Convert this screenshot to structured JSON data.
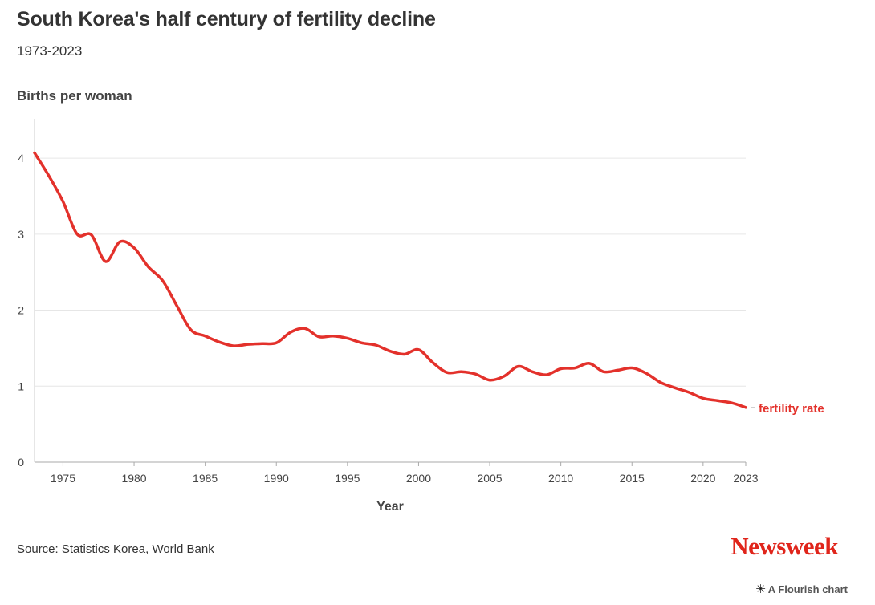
{
  "header": {
    "title": "South Korea's half century of fertility decline",
    "subtitle": "1973-2023"
  },
  "footer": {
    "source_prefix": "Source: ",
    "source_link_1": "Statistics Korea",
    "source_sep": ", ",
    "source_link_2": "World Bank",
    "brand": "Newsweek",
    "flourish_icon": "asterisk-icon",
    "flourish_label": "A Flourish chart"
  },
  "colors": {
    "line": "#e3312b",
    "grid": "#e6e6e6",
    "axis": "#cccccc",
    "text": "#333333"
  },
  "chart_data": {
    "type": "line",
    "title": "South Korea's half century of fertility decline",
    "subtitle": "1973-2023",
    "xlabel": "Year",
    "ylabel": "Births per woman",
    "xlim": [
      1973,
      2023
    ],
    "ylim": [
      0,
      4.5
    ],
    "x_ticks": [
      1975,
      1980,
      1985,
      1990,
      1995,
      2000,
      2005,
      2010,
      2015,
      2020,
      2023
    ],
    "y_ticks": [
      0,
      1,
      2,
      3,
      4
    ],
    "grid": true,
    "series": [
      {
        "name": "fertility rate",
        "x": [
          1973,
          1974,
          1975,
          1976,
          1977,
          1978,
          1979,
          1980,
          1981,
          1982,
          1983,
          1984,
          1985,
          1986,
          1987,
          1988,
          1989,
          1990,
          1991,
          1992,
          1993,
          1994,
          1995,
          1996,
          1997,
          1998,
          1999,
          2000,
          2001,
          2002,
          2003,
          2004,
          2005,
          2006,
          2007,
          2008,
          2009,
          2010,
          2011,
          2012,
          2013,
          2014,
          2015,
          2016,
          2017,
          2018,
          2019,
          2020,
          2021,
          2022,
          2023
        ],
        "values": [
          4.07,
          3.77,
          3.43,
          3.0,
          2.99,
          2.64,
          2.9,
          2.82,
          2.57,
          2.39,
          2.06,
          1.74,
          1.66,
          1.58,
          1.53,
          1.55,
          1.56,
          1.57,
          1.71,
          1.76,
          1.65,
          1.66,
          1.63,
          1.57,
          1.54,
          1.46,
          1.42,
          1.48,
          1.31,
          1.18,
          1.19,
          1.16,
          1.08,
          1.13,
          1.26,
          1.19,
          1.15,
          1.23,
          1.24,
          1.3,
          1.19,
          1.21,
          1.24,
          1.17,
          1.05,
          0.98,
          0.92,
          0.84,
          0.81,
          0.78,
          0.72
        ]
      }
    ]
  }
}
